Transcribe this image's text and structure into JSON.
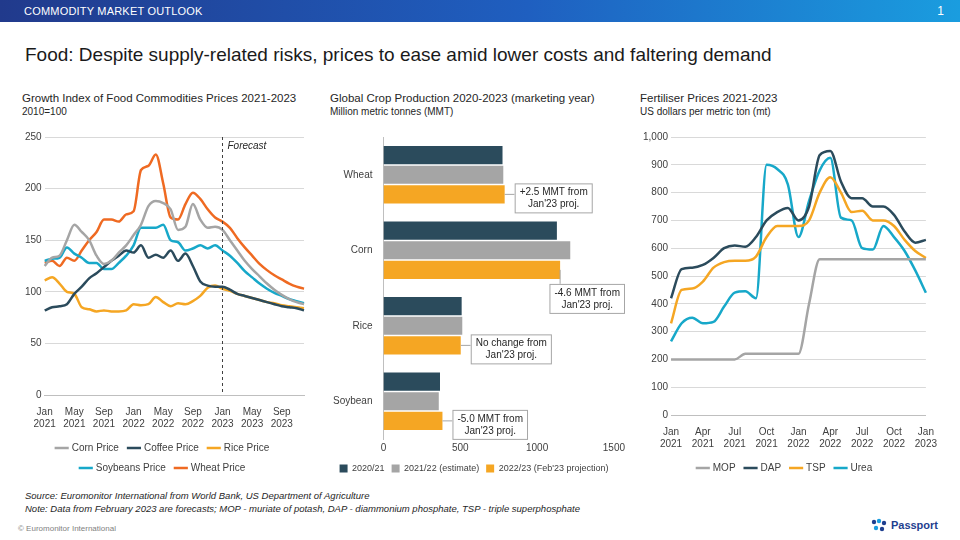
{
  "header": {
    "label": "COMMODITY MARKET OUTLOOK",
    "page": 1
  },
  "title": "Food: Despite supply-related risks, prices to ease amid lower costs and faltering demand",
  "chart_data": [
    {
      "type": "line",
      "title": "Growth Index of Food Commodities Prices 2021-2023",
      "subtitle": "2010=100",
      "categories": [
        "Jan 2021",
        null,
        null,
        null,
        "May 2021",
        null,
        null,
        null,
        "Sep 2021",
        null,
        null,
        null,
        "Jan 2022",
        null,
        null,
        null,
        "May 2022",
        null,
        null,
        null,
        "Sep 2022",
        null,
        null,
        null,
        "Jan 2023",
        null,
        null,
        null,
        "May 2023",
        null,
        null,
        null,
        "Sep 2023",
        null,
        null,
        null
      ],
      "series": [
        {
          "name": "Corn Price",
          "color": "#a5a5a5",
          "values": [
            125,
            133,
            135,
            150,
            165,
            158,
            150,
            135,
            127,
            130,
            138,
            145,
            155,
            165,
            183,
            188,
            186,
            180,
            160,
            163,
            185,
            170,
            162,
            163,
            160,
            150,
            140,
            130,
            122,
            115,
            108,
            102,
            97,
            93,
            90,
            88
          ]
        },
        {
          "name": "Coffee Price",
          "color": "#2b4b5c",
          "values": [
            82,
            85,
            86,
            88,
            98,
            105,
            113,
            118,
            124,
            130,
            135,
            140,
            138,
            145,
            133,
            136,
            133,
            140,
            130,
            137,
            125,
            110,
            106,
            105,
            105,
            102,
            98,
            96,
            94,
            92,
            90,
            88,
            86,
            85,
            84,
            82
          ]
        },
        {
          "name": "Rice Price",
          "color": "#f5a623",
          "values": [
            111,
            114,
            108,
            100,
            98,
            85,
            83,
            81,
            82,
            81,
            81,
            82,
            88,
            87,
            88,
            95,
            90,
            86,
            89,
            88,
            91,
            96,
            104,
            106,
            103,
            101,
            98,
            96,
            94,
            92,
            90,
            89,
            87,
            86,
            85,
            84
          ]
        },
        {
          "name": "Soybeans Price",
          "color": "#17a8c9",
          "values": [
            130,
            132,
            133,
            143,
            137,
            133,
            128,
            128,
            122,
            122,
            128,
            135,
            145,
            162,
            162,
            162,
            165,
            150,
            148,
            140,
            142,
            145,
            142,
            145,
            140,
            135,
            128,
            120,
            114,
            108,
            103,
            99,
            96,
            93,
            91,
            89
          ]
        },
        {
          "name": "Wheat Price",
          "color": "#ef6a22",
          "values": [
            128,
            130,
            125,
            133,
            130,
            140,
            150,
            158,
            170,
            170,
            168,
            175,
            178,
            218,
            222,
            233,
            205,
            172,
            170,
            185,
            196,
            190,
            180,
            172,
            168,
            162,
            152,
            143,
            135,
            127,
            121,
            116,
            112,
            108,
            105,
            103
          ]
        }
      ],
      "ylim": [
        0,
        250
      ],
      "yticks": [
        0,
        50,
        100,
        150,
        200,
        250
      ],
      "grid": true,
      "legend": "bottom",
      "annotations": [
        {
          "x": "Jan 2023",
          "text": "Forecast"
        }
      ]
    },
    {
      "type": "bar",
      "orientation": "horizontal",
      "title": "Global Crop Production 2020-2023 (marketing year)",
      "subtitle": "Million metric tonnes (MMT)",
      "categories": [
        "Wheat",
        "Corn",
        "Rice",
        "Soybean"
      ],
      "series": [
        {
          "name": "2020/21",
          "color": "#2b4b5c",
          "values": [
            775,
            1129,
            509,
            368
          ]
        },
        {
          "name": "2021/22 (estimate)",
          "color": "#a5a5a5",
          "values": [
            780,
            1216,
            513,
            360
          ]
        },
        {
          "name": "2022/23 (Feb'23 projection)",
          "color": "#f5a623",
          "values": [
            789,
            1150,
            503,
            384
          ]
        }
      ],
      "xlim": [
        0,
        1500
      ],
      "xticks": [
        0,
        500,
        1000,
        1500
      ],
      "grid": false,
      "legend": "bottom",
      "annotations": [
        {
          "category": "Wheat",
          "text": "+2.5 MMT from Jan'23 proj."
        },
        {
          "category": "Corn",
          "text": "-4.6 MMT from Jan'23 proj."
        },
        {
          "category": "Rice",
          "text": "No change from Jan'23 proj."
        },
        {
          "category": "Soybean",
          "text": "-5.0 MMT from Jan'23 proj."
        }
      ]
    },
    {
      "type": "line",
      "title": "Fertiliser Prices 2021-2023",
      "subtitle": "US dollars per metric ton (mt)",
      "categories": [
        "Jan 2021",
        null,
        null,
        "Apr 2021",
        null,
        null,
        "Jul 2021",
        null,
        null,
        "Oct 2021",
        null,
        null,
        "Jan 2022",
        null,
        null,
        "Apr 2022",
        null,
        null,
        "Jul 2022",
        null,
        null,
        "Oct 2022",
        null,
        null,
        "Jan 2023"
      ],
      "series": [
        {
          "name": "MOP",
          "color": "#a5a5a5",
          "values": [
            200,
            200,
            200,
            200,
            200,
            200,
            200,
            220,
            220,
            220,
            220,
            220,
            220,
            400,
            560,
            560,
            560,
            560,
            560,
            560,
            560,
            560,
            560,
            560,
            560
          ]
        },
        {
          "name": "DAP",
          "color": "#2b4b5c",
          "values": [
            420,
            525,
            530,
            540,
            565,
            600,
            610,
            605,
            640,
            700,
            730,
            745,
            700,
            750,
            935,
            950,
            840,
            780,
            780,
            750,
            750,
            720,
            660,
            620,
            630
          ]
        },
        {
          "name": "TSP",
          "color": "#f5a623",
          "values": [
            330,
            450,
            455,
            480,
            530,
            550,
            555,
            555,
            570,
            640,
            680,
            680,
            680,
            700,
            800,
            855,
            800,
            730,
            735,
            700,
            700,
            680,
            630,
            590,
            565
          ]
        },
        {
          "name": "Urea",
          "color": "#17a8c9",
          "values": [
            265,
            330,
            350,
            330,
            335,
            390,
            440,
            445,
            420,
            900,
            885,
            830,
            640,
            770,
            880,
            925,
            710,
            700,
            600,
            595,
            680,
            640,
            590,
            520,
            440
          ]
        }
      ],
      "ylim": [
        0,
        1000
      ],
      "yticks": [
        0,
        100,
        200,
        300,
        400,
        500,
        600,
        700,
        800,
        900,
        {
          "value": 1000,
          "label": "1,000"
        }
      ],
      "grid": true,
      "legend": "bottom"
    }
  ],
  "footer": {
    "source": "Source: Euromonitor International from World Bank, US Department of Agriculture",
    "note": "Note: Data from February 2023 are forecasts; MOP - muriate of potash, DAP - diammonium phosphate, TSP - triple superphosphate",
    "copyright": "© Euromonitor International",
    "brand": "Passport"
  }
}
